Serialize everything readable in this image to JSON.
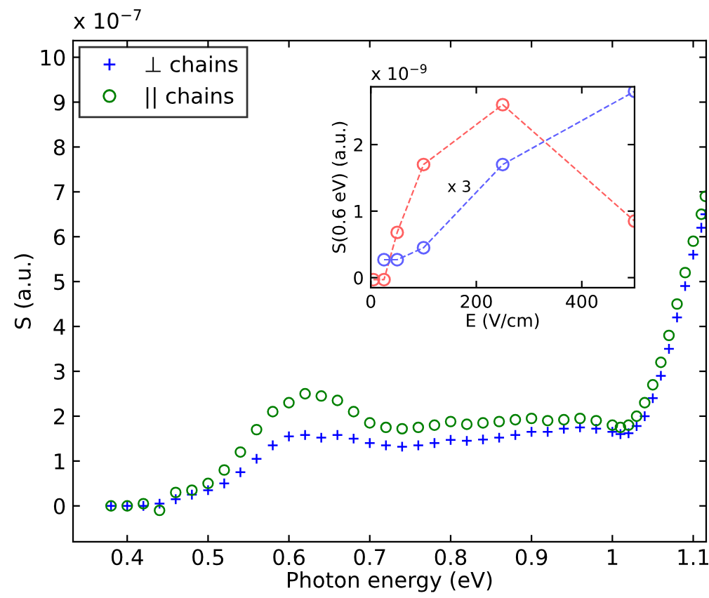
{
  "chart_data": [
    {
      "type": "scatter",
      "xlabel": "Photon energy (eV)",
      "ylabel": "S (a.u.)",
      "annotations": [
        "x 10$^{−7}$"
      ],
      "xlim": [
        0.333,
        1.116
      ],
      "xticks": [
        0.4,
        0.5,
        0.6,
        0.7,
        0.8,
        0.9,
        {
          "value": 1.0,
          "label": "1"
        },
        1.1
      ],
      "ylim": [
        -0.8,
        10.37
      ],
      "yticks": [
        0,
        1,
        2,
        3,
        4,
        5,
        6,
        7,
        8,
        9,
        10
      ],
      "grid": false,
      "legend": "top left",
      "series": [
        {
          "name": "⊥ chains",
          "color": "#0000ff",
          "marker": "cross",
          "x": [
            0.38,
            0.4,
            0.42,
            0.44,
            0.46,
            0.48,
            0.5,
            0.52,
            0.54,
            0.56,
            0.58,
            0.6,
            0.62,
            0.64,
            0.66,
            0.68,
            0.7,
            0.72,
            0.74,
            0.76,
            0.78,
            0.8,
            0.82,
            0.84,
            0.86,
            0.88,
            0.9,
            0.92,
            0.94,
            0.96,
            0.98,
            1.0,
            1.01,
            1.02,
            1.03,
            1.04,
            1.05,
            1.06,
            1.07,
            1.08,
            1.09,
            1.1,
            1.11,
            1.115
          ],
          "values": [
            0,
            0,
            0,
            0.05,
            0.15,
            0.25,
            0.35,
            0.5,
            0.75,
            1.05,
            1.35,
            1.55,
            1.58,
            1.52,
            1.58,
            1.5,
            1.4,
            1.35,
            1.32,
            1.35,
            1.4,
            1.47,
            1.45,
            1.48,
            1.52,
            1.58,
            1.65,
            1.65,
            1.72,
            1.75,
            1.72,
            1.65,
            1.6,
            1.62,
            1.78,
            2.0,
            2.4,
            2.9,
            3.5,
            4.2,
            4.9,
            5.6,
            6.2,
            6.5
          ]
        },
        {
          "name": "|| chains",
          "color": "#008000",
          "marker": "circle",
          "x": [
            0.38,
            0.4,
            0.42,
            0.44,
            0.46,
            0.48,
            0.5,
            0.52,
            0.54,
            0.56,
            0.58,
            0.6,
            0.62,
            0.64,
            0.66,
            0.68,
            0.7,
            0.72,
            0.74,
            0.76,
            0.78,
            0.8,
            0.82,
            0.84,
            0.86,
            0.88,
            0.9,
            0.92,
            0.94,
            0.96,
            0.98,
            1.0,
            1.01,
            1.02,
            1.03,
            1.04,
            1.05,
            1.06,
            1.07,
            1.08,
            1.09,
            1.1,
            1.11,
            1.115
          ],
          "values": [
            0,
            0,
            0.05,
            -0.1,
            0.3,
            0.35,
            0.5,
            0.8,
            1.2,
            1.7,
            2.1,
            2.3,
            2.5,
            2.45,
            2.35,
            2.1,
            1.85,
            1.75,
            1.72,
            1.75,
            1.8,
            1.88,
            1.82,
            1.85,
            1.88,
            1.92,
            1.95,
            1.9,
            1.92,
            1.95,
            1.9,
            1.8,
            1.75,
            1.8,
            2.0,
            2.3,
            2.7,
            3.2,
            3.8,
            4.5,
            5.2,
            5.9,
            6.5,
            6.9
          ]
        }
      ]
    },
    {
      "type": "line",
      "xlabel": "E (V/cm)",
      "ylabel": "S(0.6 eV) (a.u.)",
      "annotations": [
        "x 10$^{−9}$",
        "x 3"
      ],
      "xlim": [
        0,
        500
      ],
      "xticks": [
        0,
        200,
        400
      ],
      "ylim": [
        -0.15,
        2.87
      ],
      "yticks": [
        0,
        1,
        2
      ],
      "grid": false,
      "marker": "circle",
      "line_style": "dashed",
      "series": [
        {
          "color": "#ff6060",
          "x": [
            5,
            25,
            50,
            100,
            250,
            500
          ],
          "values": [
            -0.03,
            -0.03,
            0.68,
            1.7,
            2.6,
            0.85
          ]
        },
        {
          "color": "#6060ff",
          "x": [
            25,
            50,
            100,
            250,
            500
          ],
          "values": [
            0.27,
            0.27,
            0.45,
            1.7,
            2.8
          ]
        }
      ]
    }
  ]
}
